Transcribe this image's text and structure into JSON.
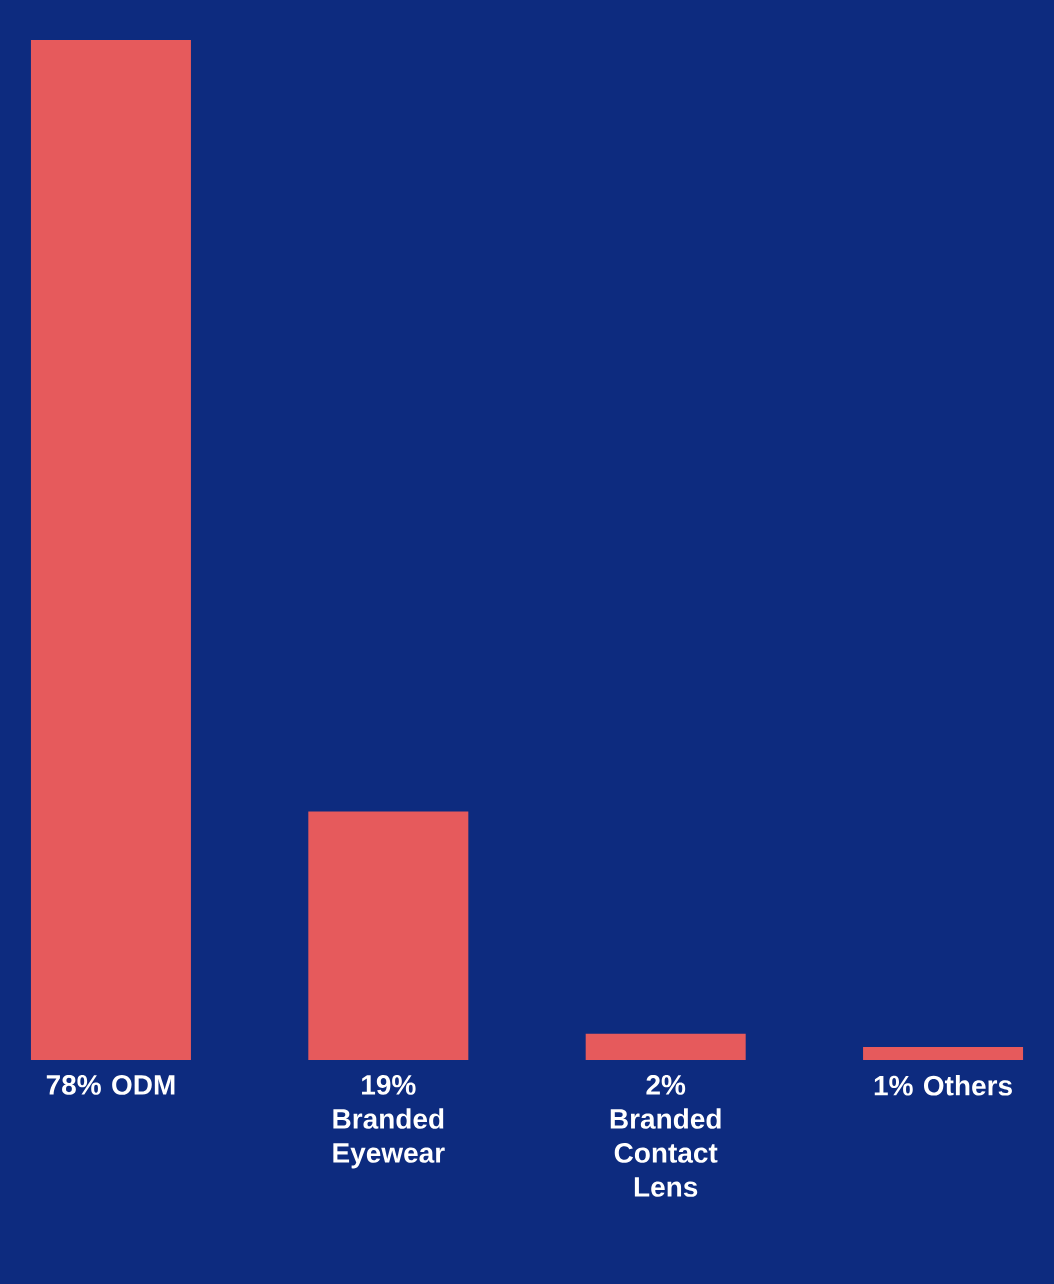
{
  "chart_data": {
    "type": "bar",
    "categories": [
      "ODM",
      "Branded Eyewear",
      "Branded Contact Lens",
      "Others"
    ],
    "values": [
      78,
      19,
      2,
      1
    ],
    "value_labels": [
      "78%",
      "19%",
      "2%",
      "1%"
    ],
    "color": "#e65a5c"
  }
}
